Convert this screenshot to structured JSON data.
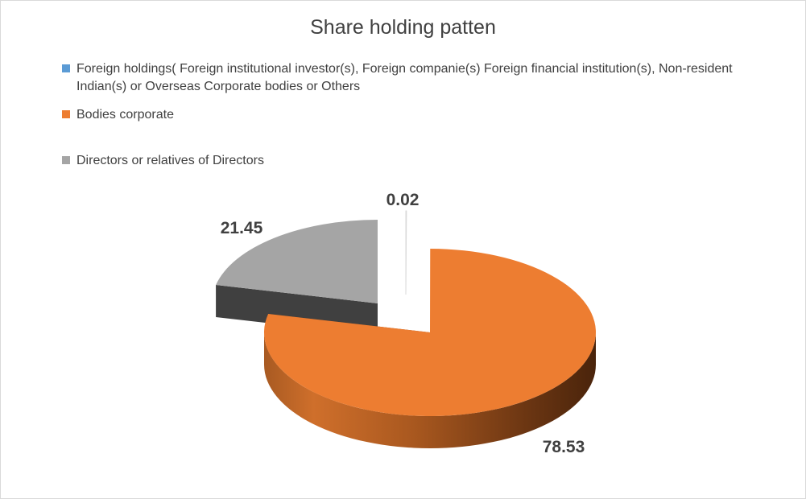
{
  "chart_data": {
    "type": "pie",
    "title": "Share holding patten",
    "style": "3d-exploded",
    "legend_position": "top",
    "slices": [
      {
        "label": "Foreign holdings( Foreign institutional investor(s), Foreign companie(s) Foreign financial institution(s), Non-resident Indian(s) or Overseas Corporate bodies or Others",
        "value": 0.02,
        "color": "#5b9bd5",
        "data_label": "0.02"
      },
      {
        "label": "Bodies corporate",
        "value": 78.53,
        "color": "#ed7d31",
        "data_label": "78.53"
      },
      {
        "label": "Directors or relatives of Directors",
        "value": 21.45,
        "color": "#a5a5a5",
        "data_label": "21.45"
      }
    ]
  }
}
